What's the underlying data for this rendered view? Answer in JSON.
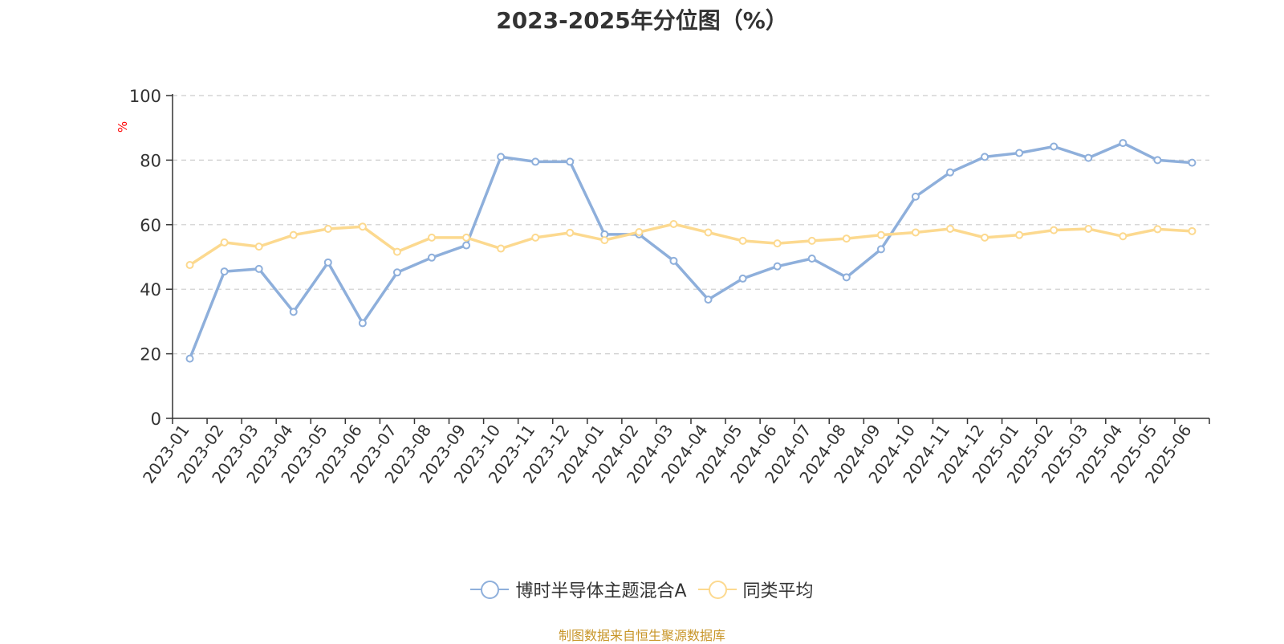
{
  "title": "2023-2025年分位图（%）",
  "source_text": "制图数据来自恒生聚源数据库",
  "chart_data": {
    "type": "line",
    "title": "2023-2025年分位图（%）",
    "ylabel": "%",
    "xlabel": "",
    "ylim": [
      0,
      100
    ],
    "yticks": [
      0,
      20,
      40,
      60,
      80,
      100
    ],
    "grid": true,
    "legend_position": "bottom",
    "categories": [
      "2023-01",
      "2023-02",
      "2023-03",
      "2023-04",
      "2023-05",
      "2023-06",
      "2023-07",
      "2023-08",
      "2023-09",
      "2023-10",
      "2023-11",
      "2023-12",
      "2024-01",
      "2024-02",
      "2024-03",
      "2024-04",
      "2024-05",
      "2024-06",
      "2024-07",
      "2024-08",
      "2024-09",
      "2024-10",
      "2024-11",
      "2024-12",
      "2025-01",
      "2025-02",
      "2025-03",
      "2025-04",
      "2025-05",
      "2025-06"
    ],
    "series": [
      {
        "name": "博时半导体主题混合A",
        "color": "#8eafdb",
        "values": [
          18.5,
          45.5,
          46.3,
          33,
          48.3,
          29.5,
          45.2,
          49.8,
          53.6,
          81,
          79.5,
          79.5,
          57,
          57,
          48.8,
          36.8,
          43.3,
          47.1,
          49.5,
          43.7,
          52.4,
          68.7,
          76.2,
          81,
          82.2,
          84.2,
          80.7,
          85.3,
          80,
          79.2
        ]
      },
      {
        "name": "同类平均",
        "color": "#fcd98f",
        "values": [
          47.5,
          54.5,
          53.2,
          56.8,
          58.7,
          59.4,
          51.6,
          56,
          56,
          52.6,
          56,
          57.5,
          55.2,
          57.7,
          60.2,
          57.6,
          55,
          54.2,
          55,
          55.7,
          56.8,
          57.6,
          58.7,
          56,
          56.8,
          58.3,
          58.7,
          56.4,
          58.6,
          58
        ]
      }
    ]
  }
}
